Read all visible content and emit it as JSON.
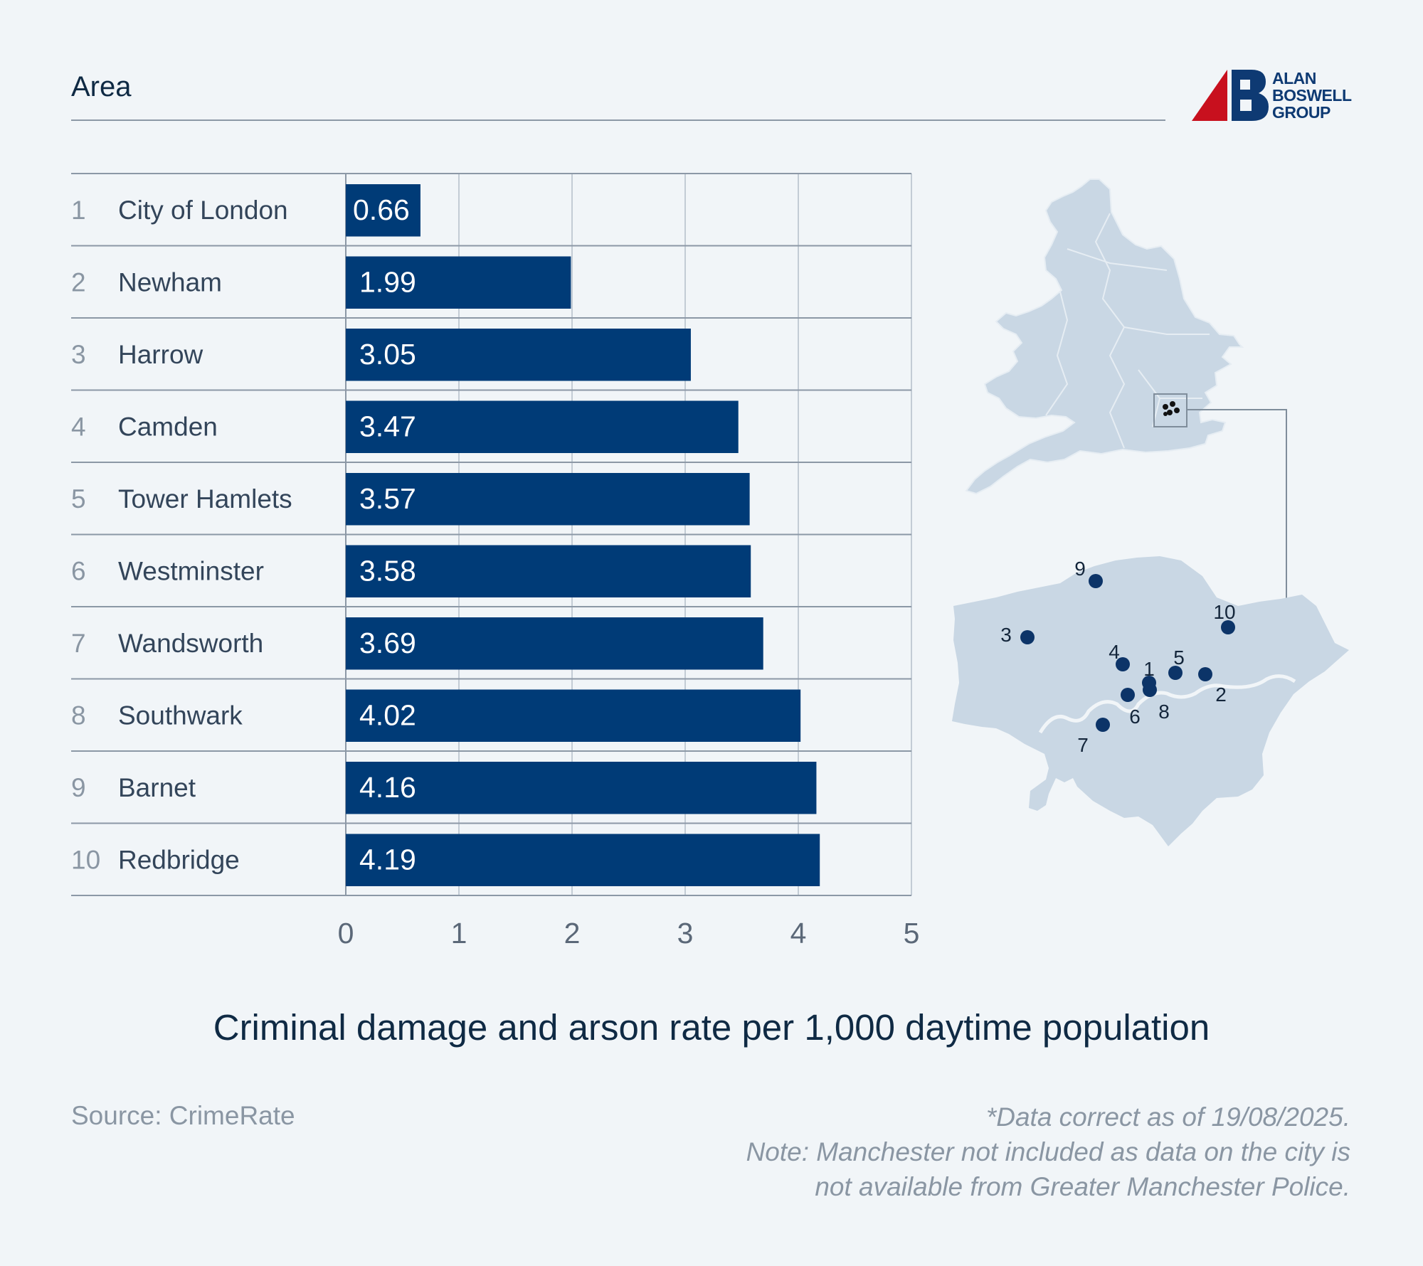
{
  "header": {
    "label": "Area"
  },
  "logo": {
    "lines": [
      "ALAN",
      "BOSWELL",
      "GROUP"
    ],
    "red": "#c8101e",
    "blue": "#0e3a73"
  },
  "chart_data": {
    "type": "bar",
    "orientation": "horizontal",
    "title": "Criminal damage and arson rate per 1,000 daytime population",
    "ylabel": "Area",
    "xlabel": "Criminal damage and arson rate per 1,000 daytime population",
    "xlim": [
      0,
      5
    ],
    "xticks": [
      "0",
      "1",
      "2",
      "3",
      "4",
      "5"
    ],
    "grid": true,
    "bar_color": "#003b77",
    "categories": [
      "City of London",
      "Newham",
      "Harrow",
      "Camden",
      "Tower Hamlets",
      "Westminster",
      "Wandsworth",
      "Southwark",
      "Barnet",
      "Redbridge"
    ],
    "ranks": [
      "1",
      "2",
      "3",
      "4",
      "5",
      "6",
      "7",
      "8",
      "9",
      "10"
    ],
    "values": [
      0.66,
      1.99,
      3.05,
      3.47,
      3.57,
      3.58,
      3.69,
      4.02,
      4.16,
      4.19
    ],
    "value_labels": [
      "0.66",
      "1.99",
      "3.05",
      "3.47",
      "3.57",
      "3.58",
      "3.69",
      "4.02",
      "4.16",
      "4.19"
    ]
  },
  "map": {
    "labels": [
      "1",
      "2",
      "3",
      "4",
      "5",
      "6",
      "7",
      "8",
      "9",
      "10"
    ],
    "land_color": "#c9d7e4",
    "marker_color": "#0c3468"
  },
  "footer": {
    "source": "Source: CrimeRate",
    "notes": [
      "*Data correct as of 19/08/2025.",
      "Note: Manchester not included as data on the city is",
      "not available from Greater Manchester Police."
    ]
  }
}
